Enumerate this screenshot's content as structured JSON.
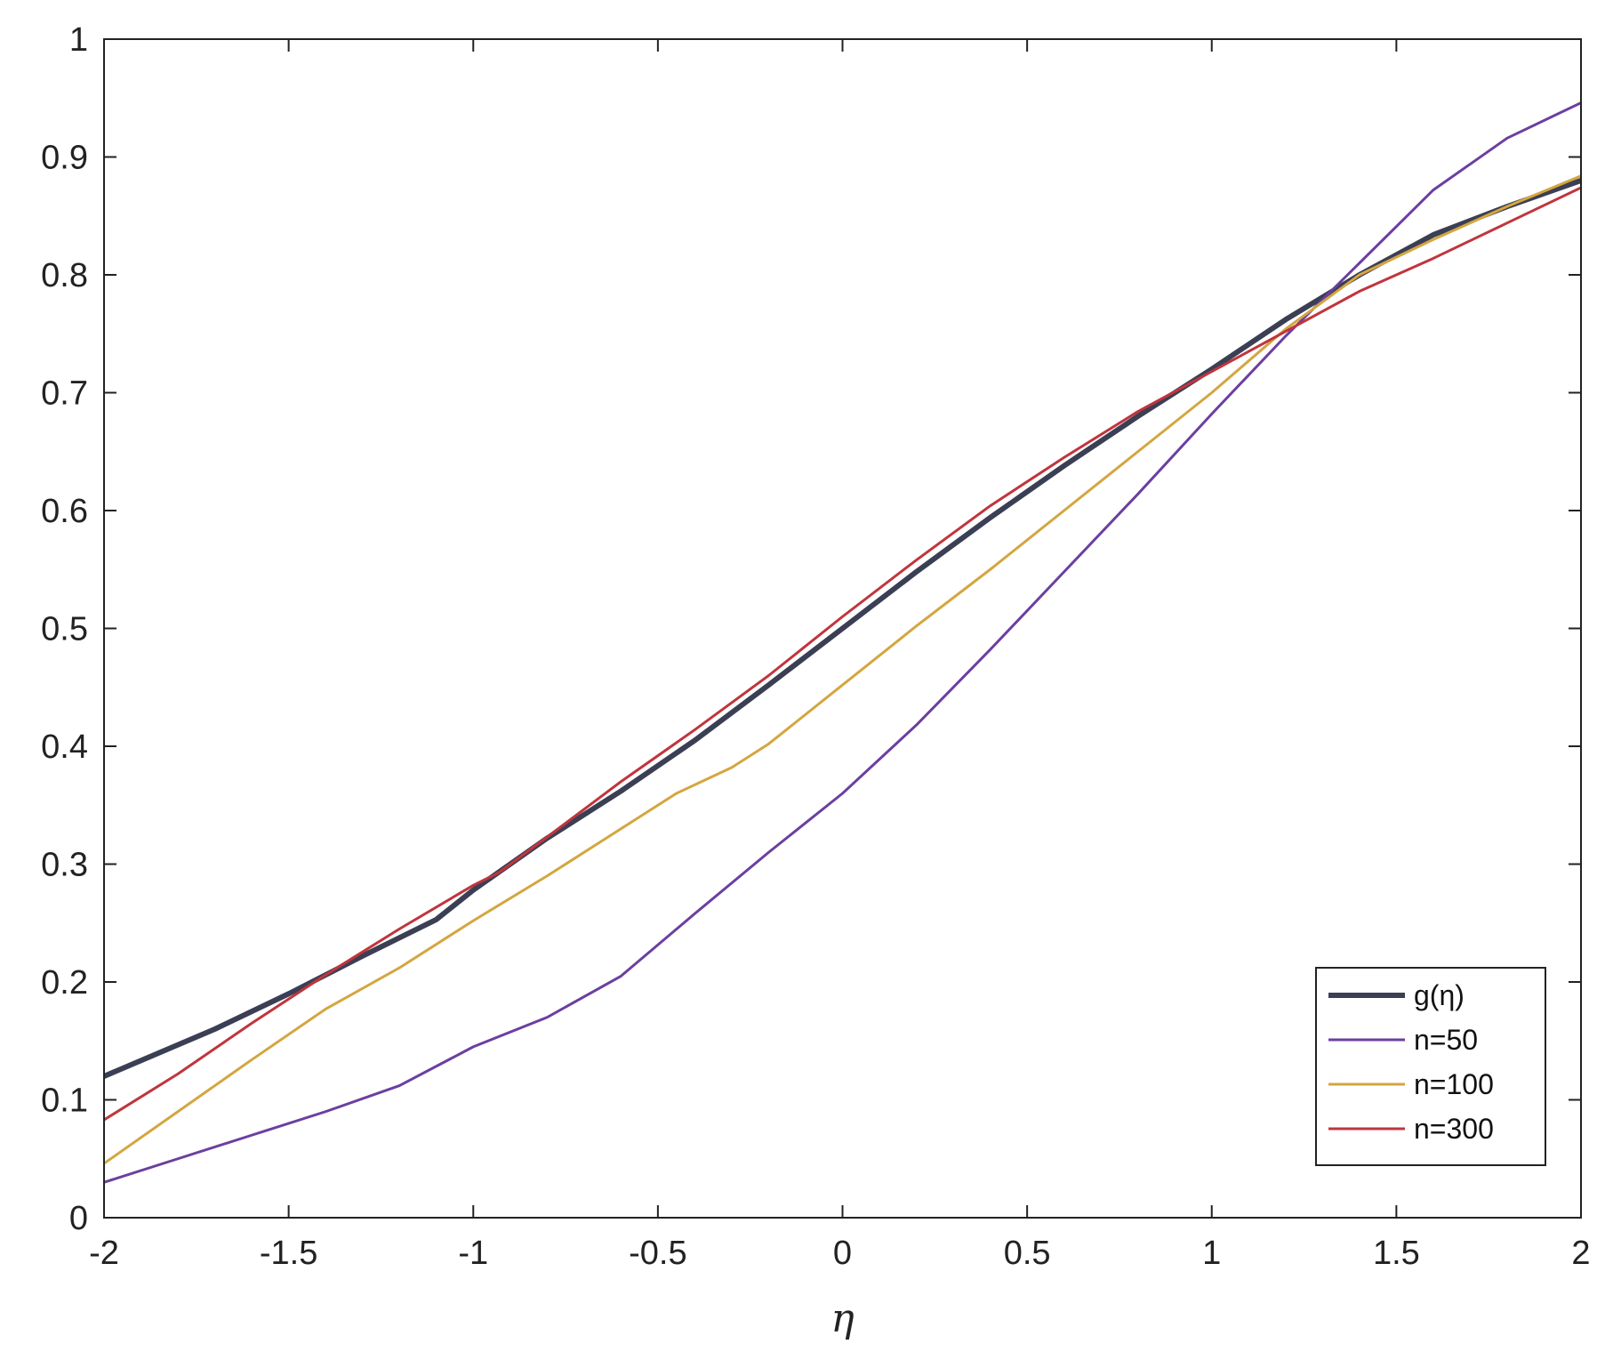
{
  "chart_data": {
    "type": "line",
    "title": "",
    "xlabel": "η",
    "ylabel": "",
    "xlim": [
      -2,
      2
    ],
    "ylim": [
      0,
      1
    ],
    "xticks": [
      -2,
      -1.5,
      -1,
      -0.5,
      0,
      0.5,
      1,
      1.5,
      2
    ],
    "xtick_labels": [
      "-2",
      "-1.5",
      "-1",
      "-0.5",
      "0",
      "0.5",
      "1",
      "1.5",
      "2"
    ],
    "yticks": [
      0,
      0.1,
      0.2,
      0.3,
      0.4,
      0.5,
      0.6,
      0.7,
      0.8,
      0.9,
      1
    ],
    "ytick_labels": [
      "0",
      "0.1",
      "0.2",
      "0.3",
      "0.4",
      "0.5",
      "0.6",
      "0.7",
      "0.8",
      "0.9",
      "1"
    ],
    "grid": false,
    "legend_position": "bottom-right",
    "series": [
      {
        "name": "g(η)",
        "color": "#3b3f54",
        "line": "thick",
        "x": [
          -2,
          -1.7,
          -1.5,
          -1.3,
          -1.1,
          -1,
          -0.8,
          -0.6,
          -0.4,
          -0.2,
          0,
          0.2,
          0.4,
          0.6,
          0.8,
          1,
          1.2,
          1.4,
          1.6,
          1.8,
          2
        ],
        "y": [
          0.12,
          0.16,
          0.19,
          0.222,
          0.253,
          0.278,
          0.322,
          0.362,
          0.405,
          0.452,
          0.5,
          0.548,
          0.594,
          0.638,
          0.68,
          0.72,
          0.762,
          0.8,
          0.834,
          0.858,
          0.88
        ]
      },
      {
        "name": "n=50",
        "color": "#6b3fa0",
        "line": "thin",
        "x": [
          -2,
          -1.8,
          -1.6,
          -1.4,
          -1.2,
          -1,
          -0.8,
          -0.6,
          -0.4,
          -0.2,
          0,
          0.2,
          0.4,
          0.6,
          0.8,
          1,
          1.2,
          1.4,
          1.6,
          1.8,
          2
        ],
        "y": [
          0.03,
          0.05,
          0.07,
          0.09,
          0.112,
          0.145,
          0.17,
          0.205,
          0.258,
          0.31,
          0.36,
          0.418,
          0.482,
          0.548,
          0.614,
          0.682,
          0.748,
          0.81,
          0.872,
          0.916,
          0.946
        ]
      },
      {
        "name": "n=100",
        "color": "#d4a640",
        "line": "thin",
        "x": [
          -2,
          -1.8,
          -1.6,
          -1.4,
          -1.2,
          -1,
          -0.8,
          -0.6,
          -0.45,
          -0.3,
          -0.2,
          0,
          0.2,
          0.4,
          0.6,
          0.8,
          1,
          1.2,
          1.4,
          1.6,
          1.8,
          2
        ],
        "y": [
          0.046,
          0.09,
          0.134,
          0.177,
          0.212,
          0.252,
          0.29,
          0.33,
          0.36,
          0.382,
          0.402,
          0.452,
          0.502,
          0.55,
          0.6,
          0.65,
          0.7,
          0.754,
          0.8,
          0.83,
          0.858,
          0.884
        ]
      },
      {
        "name": "n=300",
        "color": "#c0353d",
        "line": "thin",
        "x": [
          -2,
          -1.8,
          -1.6,
          -1.4,
          -1.2,
          -1,
          -0.93,
          -0.8,
          -0.6,
          -0.4,
          -0.2,
          0,
          0.2,
          0.4,
          0.6,
          0.8,
          1,
          1.2,
          1.4,
          1.6,
          1.8,
          2
        ],
        "y": [
          0.083,
          0.122,
          0.165,
          0.206,
          0.245,
          0.282,
          0.293,
          0.323,
          0.37,
          0.414,
          0.46,
          0.51,
          0.558,
          0.604,
          0.645,
          0.684,
          0.718,
          0.752,
          0.786,
          0.814,
          0.844,
          0.874
        ]
      }
    ]
  }
}
